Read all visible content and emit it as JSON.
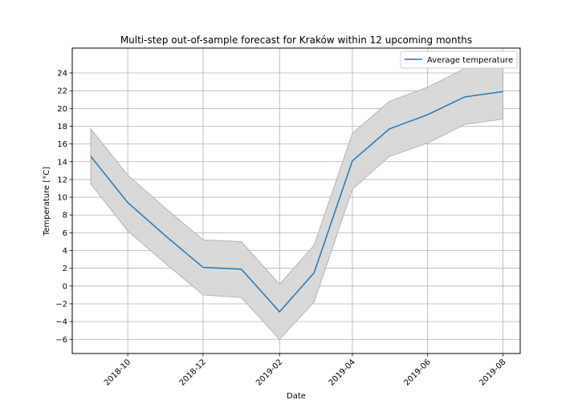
{
  "chart_data": {
    "type": "line",
    "title": "Multi-step out-of-sample forecast for Kraków within 12 upcoming months",
    "xlabel": "Date",
    "ylabel": "Temperature [°C]",
    "x": [
      "2018-09-01",
      "2018-10-01",
      "2018-11-01",
      "2018-12-01",
      "2019-01-01",
      "2019-02-01",
      "2019-03-01",
      "2019-04-01",
      "2019-05-01",
      "2019-06-01",
      "2019-07-01",
      "2019-08-01"
    ],
    "series": [
      {
        "name": "Average temperature",
        "color": "#1f77b4",
        "values": [
          14.6,
          9.4,
          5.6,
          2.1,
          1.9,
          -2.9,
          1.5,
          14.1,
          17.7,
          19.3,
          21.3,
          21.9
        ],
        "ci_lower": [
          11.5,
          6.2,
          2.5,
          -1.0,
          -1.3,
          -6.0,
          -1.8,
          10.9,
          14.6,
          16.1,
          18.2,
          18.8
        ],
        "ci_upper": [
          17.7,
          12.5,
          8.7,
          5.2,
          5.0,
          0.2,
          4.6,
          17.2,
          20.8,
          22.4,
          24.5,
          25.0
        ]
      }
    ],
    "band_color": "#d9d9d9",
    "xticks": [
      "2018-10",
      "2018-12",
      "2019-02",
      "2019-04",
      "2019-06",
      "2019-08"
    ],
    "yticks": [
      -6,
      -4,
      -2,
      0,
      2,
      4,
      6,
      8,
      10,
      12,
      14,
      16,
      18,
      20,
      22,
      24
    ],
    "ylim": [
      -7.6,
      26.8
    ],
    "xlim": [
      "2018-08-17",
      "2019-08-15"
    ],
    "grid": true,
    "legend_position": "top-right"
  }
}
